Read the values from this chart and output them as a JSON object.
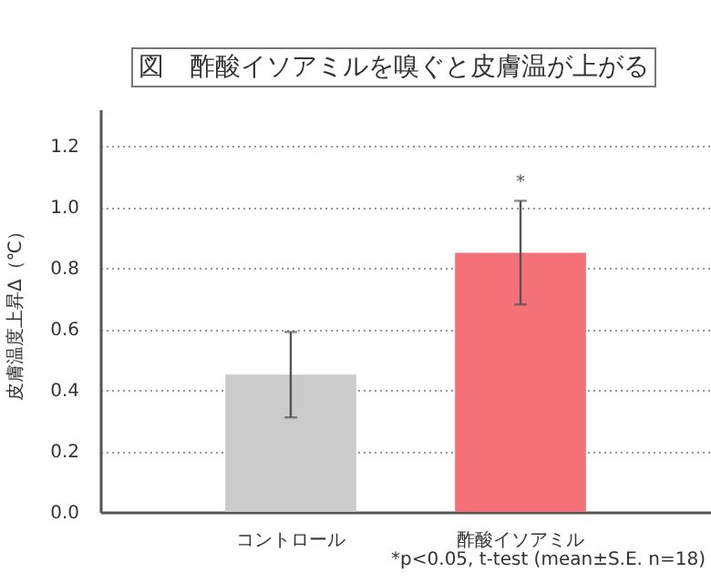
{
  "chart_data": {
    "type": "bar",
    "title": "図　酢酸イソアミルを嗅ぐと皮膚温が上がる",
    "ylabel": "皮膚温度上昇Δ（℃）",
    "categories": [
      "コントロール",
      "酢酸イソアミル"
    ],
    "values": [
      0.45,
      0.85
    ],
    "errors": [
      0.14,
      0.17
    ],
    "colors": [
      "#cbcbcb",
      "#f47277"
    ],
    "ylim": [
      0,
      1.32
    ],
    "yticks": [
      {
        "value": 0,
        "label": "0.0"
      },
      {
        "value": 0.2,
        "label": "0.2"
      },
      {
        "value": 0.4,
        "label": "0.4"
      },
      {
        "value": 0.6,
        "label": "0.6"
      },
      {
        "value": 0.8,
        "label": "0.8"
      },
      {
        "value": 1,
        "label": "1.0"
      },
      {
        "value": 1.2,
        "label": "1.2"
      }
    ],
    "grid": "y",
    "annotations": [
      {
        "text": "*",
        "x": "酢酸イソアミル",
        "y": 1.02
      },
      "*p<0.05, t-test (mean±S.E. n=18)"
    ]
  }
}
